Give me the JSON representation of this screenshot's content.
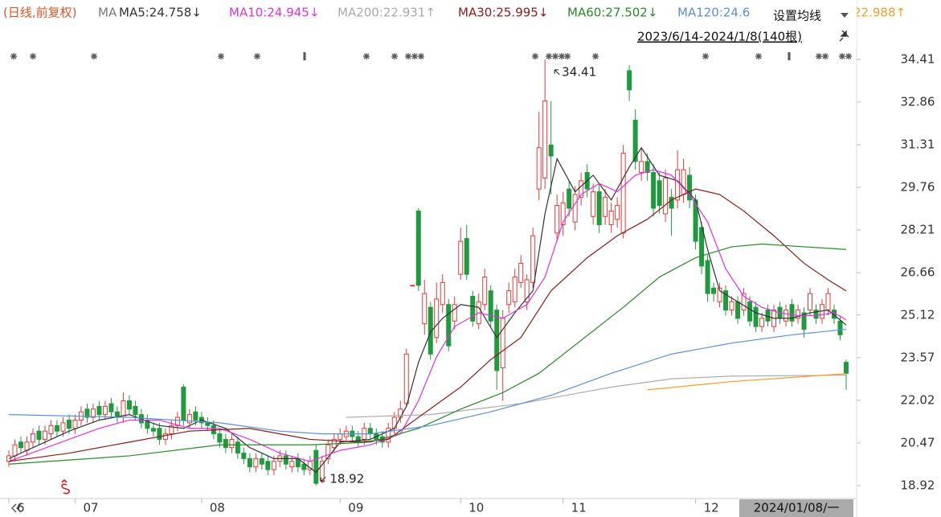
{
  "chart_data": {
    "type": "candlestick",
    "header": "(日线,前复权)",
    "ma_label": "MA",
    "settings_button": "设置均线",
    "range_label": "2023/6/14-2024/1/8(140根)",
    "cursor_label": "2024/01/08/一",
    "max_label": 34.41,
    "min_label": 18.92,
    "up_color": "#e83838",
    "down_color": "#1f9a3f",
    "xlim": [
      -0.8,
      140.2
    ],
    "xticks": [
      {
        "value": 0,
        "label": "6"
      },
      {
        "value": 11,
        "label": "07"
      },
      {
        "value": 32,
        "label": "08"
      },
      {
        "value": 55,
        "label": "09"
      },
      {
        "value": 75,
        "label": "10"
      },
      {
        "value": 92,
        "label": "11"
      },
      {
        "value": 114,
        "label": "12"
      }
    ],
    "ylim": [
      18.45,
      36.57
    ],
    "yticks": [
      34.41,
      32.86,
      31.31,
      29.76,
      28.21,
      26.66,
      25.12,
      23.57,
      22.02,
      20.47,
      18.92
    ],
    "open": [
      19.8,
      20.0,
      20.5,
      20.2,
      20.5,
      20.9,
      20.6,
      20.8,
      21.1,
      20.9,
      21.3,
      21.0,
      21.3,
      21.7,
      21.4,
      21.8,
      21.5,
      21.9,
      21.6,
      21.4,
      22.0,
      21.8,
      21.5,
      21.3,
      21.0,
      21.0,
      20.6,
      20.8,
      21.1,
      22.5,
      21.2,
      21.6,
      21.4,
      21.2,
      21.1,
      20.8,
      20.6,
      20.3,
      20.5,
      20.1,
      19.9,
      19.6,
      19.9,
      19.8,
      19.5,
      19.8,
      20.0,
      19.6,
      19.9,
      19.7,
      19.5,
      20.2,
      19.1,
      19.9,
      20.3,
      20.6,
      20.7,
      20.9,
      20.7,
      20.6,
      21.0,
      20.8,
      20.7,
      20.5,
      21.0,
      21.4,
      21.9,
      26.2,
      28.9,
      24.8,
      25.4,
      24.3,
      25.5,
      25.5,
      24.9,
      26.6,
      27.9,
      25.8,
      24.8,
      25.5,
      26.0,
      25.3,
      23.2,
      25.5,
      25.6,
      26.3,
      25.6,
      26.3,
      29.7,
      30.1,
      31.3,
      28.1,
      28.4,
      29.7,
      28.5,
      29.4,
      30.3,
      28.7,
      29.6,
      28.7,
      28.4,
      28.6,
      28.1,
      34.0,
      32.2,
      30.3,
      30.7,
      30.3,
      30.0,
      28.8,
      29.4,
      29.3,
      29.5,
      30.2,
      29.3,
      28.3,
      27.1,
      26.1,
      25.6,
      26.0,
      25.3,
      25.6,
      25.3,
      25.6,
      25.4,
      24.7,
      25.3,
      24.7,
      25.4,
      24.9,
      25.5,
      25.0,
      25.2,
      25.3,
      25.3,
      25.0,
      25.3,
      25.3,
      24.9,
      23.4
    ],
    "high": [
      20.2,
      20.6,
      20.7,
      20.7,
      21.0,
      21.1,
      21.1,
      21.3,
      21.3,
      21.4,
      21.5,
      21.5,
      21.8,
      21.9,
      21.9,
      22.0,
      22.0,
      22.1,
      21.8,
      22.3,
      22.2,
      22.0,
      21.7,
      21.5,
      21.2,
      21.2,
      21.0,
      21.3,
      21.6,
      22.6,
      21.7,
      21.8,
      21.6,
      21.4,
      21.3,
      21.0,
      20.8,
      20.8,
      20.7,
      20.3,
      20.1,
      20.1,
      20.1,
      20.0,
      20.0,
      20.2,
      20.2,
      20.0,
      20.1,
      19.9,
      20.0,
      20.4,
      20.0,
      20.6,
      20.8,
      21.0,
      21.1,
      21.1,
      20.9,
      21.2,
      21.2,
      21.0,
      20.9,
      21.2,
      21.6,
      22.0,
      23.9,
      26.2,
      29.0,
      26.4,
      25.6,
      26.3,
      26.6,
      25.7,
      25.8,
      28.3,
      28.4,
      26.0,
      25.9,
      26.8,
      26.2,
      25.5,
      25.3,
      26.3,
      26.8,
      27.3,
      26.6,
      28.3,
      32.5,
      34.41,
      32.9,
      29.5,
      29.6,
      30.0,
      29.8,
      30.3,
      30.6,
      29.9,
      29.9,
      29.7,
      29.2,
      29.4,
      31.3,
      34.2,
      32.6,
      31.2,
      31.0,
      30.6,
      30.3,
      30.4,
      29.7,
      31.1,
      30.8,
      30.5,
      29.5,
      28.5,
      27.3,
      26.3,
      26.3,
      26.2,
      25.8,
      25.8,
      26.1,
      25.8,
      25.6,
      25.2,
      25.5,
      25.5,
      25.6,
      25.5,
      25.7,
      25.5,
      25.4,
      26.1,
      25.5,
      25.7,
      26.1,
      25.5,
      25.1,
      23.5
    ],
    "low": [
      19.6,
      19.8,
      20.1,
      20.0,
      20.3,
      20.4,
      20.4,
      20.6,
      20.7,
      20.7,
      20.8,
      20.8,
      21.1,
      21.2,
      21.2,
      21.3,
      21.3,
      21.4,
      21.2,
      21.2,
      21.5,
      21.3,
      21.0,
      20.8,
      20.7,
      20.4,
      20.4,
      20.6,
      20.9,
      21.1,
      21.0,
      21.1,
      21.0,
      20.9,
      20.6,
      20.3,
      20.1,
      20.1,
      19.9,
      19.7,
      19.4,
      19.4,
      19.5,
      19.3,
      19.3,
      19.6,
      19.5,
      19.4,
      19.4,
      19.3,
      19.3,
      18.92,
      19.0,
      19.7,
      20.1,
      20.4,
      20.5,
      20.5,
      20.3,
      20.4,
      20.6,
      20.4,
      20.3,
      20.3,
      20.8,
      21.2,
      21.8,
      26.2,
      26.0,
      24.4,
      23.5,
      24.1,
      25.2,
      23.8,
      24.6,
      26.4,
      26.4,
      24.7,
      24.6,
      25.3,
      24.7,
      22.4,
      22.0,
      25.2,
      25.4,
      26.1,
      25.3,
      26.1,
      29.3,
      29.7,
      29.5,
      27.8,
      28.0,
      28.7,
      28.2,
      29.1,
      29.4,
      28.4,
      28.1,
      28.4,
      28.1,
      28.3,
      27.9,
      32.9,
      30.4,
      30.0,
      30.0,
      28.7,
      28.8,
      28.5,
      28.0,
      29.0,
      29.2,
      29.0,
      27.5,
      26.6,
      25.6,
      25.6,
      25.4,
      25.1,
      25.1,
      24.8,
      25.1,
      24.7,
      24.5,
      24.5,
      24.7,
      24.5,
      24.8,
      24.7,
      24.7,
      24.8,
      24.3,
      25.1,
      24.8,
      24.8,
      25.1,
      24.8,
      24.2,
      22.4
    ],
    "close": [
      20.0,
      20.4,
      20.3,
      20.5,
      20.8,
      20.6,
      20.9,
      21.1,
      20.9,
      21.2,
      21.0,
      21.3,
      21.6,
      21.4,
      21.7,
      21.5,
      21.8,
      21.6,
      21.4,
      22.0,
      21.7,
      21.5,
      21.2,
      21.0,
      20.9,
      20.6,
      20.8,
      21.1,
      21.4,
      21.3,
      21.5,
      21.3,
      21.2,
      21.1,
      20.8,
      20.5,
      20.3,
      20.6,
      20.1,
      19.9,
      19.6,
      19.9,
      19.7,
      19.5,
      19.8,
      20.0,
      19.7,
      19.8,
      19.6,
      19.5,
      19.8,
      19.0,
      19.8,
      20.4,
      20.6,
      20.8,
      20.9,
      20.7,
      20.5,
      21.0,
      20.8,
      20.6,
      20.5,
      21.0,
      21.4,
      21.7,
      23.7,
      26.2,
      26.2,
      25.9,
      23.7,
      25.7,
      26.3,
      24.0,
      25.5,
      27.8,
      26.6,
      24.9,
      25.6,
      26.5,
      24.9,
      23.1,
      25.0,
      26.0,
      26.5,
      27.0,
      26.4,
      28.0,
      31.2,
      32.9,
      30.9,
      29.1,
      29.2,
      29.0,
      29.5,
      30.0,
      29.7,
      29.6,
      28.4,
      29.4,
      28.9,
      29.1,
      31.0,
      33.3,
      30.7,
      30.7,
      30.3,
      29.0,
      29.1,
      30.1,
      29.0,
      30.4,
      30.4,
      29.3,
      27.8,
      26.9,
      25.9,
      25.9,
      26.1,
      25.3,
      25.6,
      25.0,
      25.9,
      24.9,
      24.7,
      25.0,
      24.9,
      25.3,
      25.0,
      25.3,
      24.9,
      25.3,
      24.6,
      25.9,
      25.0,
      25.5,
      25.9,
      25.0,
      24.4,
      23.0
    ],
    "series": [
      {
        "name": "MA5:24.758↓",
        "color": "#333333",
        "x": [
          0,
          5,
          10,
          15,
          20,
          25,
          29,
          32,
          36,
          40,
          44,
          48,
          51,
          55,
          60,
          64,
          66,
          68,
          70,
          72,
          75,
          78,
          81,
          84,
          87,
          89,
          91,
          94,
          97,
          100,
          103,
          105,
          108,
          111,
          114,
          116,
          118,
          121,
          124,
          127,
          130,
          133,
          136,
          139
        ],
        "values": [
          19.9,
          20.4,
          20.9,
          21.3,
          21.5,
          21.1,
          21.0,
          21.3,
          21.0,
          20.3,
          19.9,
          19.9,
          19.4,
          20.5,
          20.6,
          21.0,
          21.8,
          23.4,
          24.5,
          25.0,
          25.5,
          25.4,
          24.3,
          25.2,
          26.0,
          28.8,
          30.8,
          29.6,
          30.2,
          29.3,
          30.5,
          31.2,
          30.2,
          30.0,
          29.3,
          27.5,
          26.0,
          25.6,
          25.2,
          25.0,
          25.0,
          25.2,
          25.3,
          24.758
        ]
      },
      {
        "name": "MA10:24.945↓",
        "color": "#e033e0",
        "x": [
          0,
          5,
          10,
          15,
          20,
          25,
          30,
          35,
          40,
          45,
          50,
          55,
          60,
          65,
          68,
          71,
          74,
          78,
          82,
          86,
          89,
          92,
          95,
          98,
          101,
          104,
          107,
          110,
          113,
          116,
          119,
          122,
          125,
          128,
          131,
          134,
          137,
          139
        ],
        "values": [
          19.8,
          20.2,
          20.6,
          21.0,
          21.3,
          21.3,
          21.0,
          21.0,
          20.6,
          20.1,
          19.8,
          20.2,
          20.4,
          20.8,
          22.0,
          23.6,
          24.7,
          25.2,
          25.0,
          25.5,
          26.5,
          28.5,
          29.5,
          29.9,
          29.6,
          30.2,
          30.4,
          30.2,
          29.5,
          28.5,
          26.8,
          25.8,
          25.4,
          25.2,
          25.1,
          25.1,
          25.2,
          24.945
        ]
      },
      {
        "name": "MA200:22.931↑",
        "color": "#aaaaaa",
        "x": [
          56,
          70,
          85,
          100,
          110,
          120,
          139
        ],
        "values": [
          21.4,
          21.5,
          21.9,
          22.5,
          22.8,
          22.9,
          22.931
        ]
      },
      {
        "name": "MA30:25.995↓",
        "color": "#8b1a1a",
        "x": [
          0,
          10,
          20,
          30,
          40,
          50,
          58,
          63,
          68,
          75,
          80,
          85,
          90,
          96,
          101,
          106,
          110,
          114,
          118,
          122,
          127,
          132,
          136,
          139
        ],
        "values": [
          19.8,
          20.1,
          20.5,
          20.9,
          21.0,
          20.6,
          20.5,
          20.6,
          21.4,
          22.5,
          23.5,
          24.3,
          26.0,
          27.2,
          28.0,
          28.6,
          29.3,
          29.7,
          29.5,
          28.9,
          28.0,
          27.0,
          26.4,
          25.995
        ]
      },
      {
        "name": "MA60:27.502↓",
        "color": "#2a8a2a",
        "x": [
          0,
          20,
          35,
          50,
          60,
          68,
          75,
          82,
          88,
          95,
          102,
          108,
          114,
          120,
          125,
          132,
          139
        ],
        "values": [
          19.7,
          20.0,
          20.4,
          20.4,
          20.5,
          21.0,
          21.7,
          22.3,
          23.0,
          24.2,
          25.4,
          26.5,
          27.2,
          27.6,
          27.7,
          27.6,
          27.502
        ]
      },
      {
        "name": "MA120:24.6",
        "color": "#5b8fd8",
        "x": [
          0,
          20,
          35,
          45,
          52,
          60,
          70,
          80,
          90,
          100,
          110,
          120,
          130,
          139
        ],
        "values": [
          21.5,
          21.4,
          21.2,
          20.9,
          20.8,
          20.8,
          21.1,
          21.6,
          22.2,
          23.0,
          23.7,
          24.1,
          24.4,
          24.6
        ]
      },
      {
        "name": "22.988↑",
        "color": "#f0a030",
        "x": [
          106,
          120,
          139
        ],
        "values": [
          22.4,
          22.7,
          22.988
        ]
      }
    ]
  }
}
